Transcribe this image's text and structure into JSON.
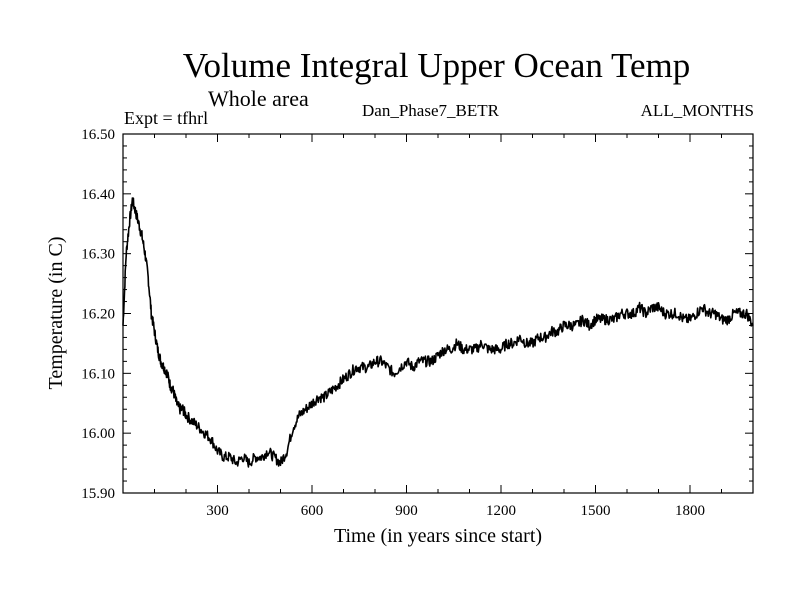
{
  "chart_data": {
    "type": "line",
    "title": "Volume Integral Upper Ocean Temp",
    "subtitle": "Whole area",
    "experiment_label": "Expt = tfhrl",
    "run_label": "Dan_Phase7_BETR",
    "months_label": "ALL_MONTHS",
    "xlabel": "Time (in years since start)",
    "ylabel": "Temperature (in C)",
    "xlim": [
      0,
      2000
    ],
    "ylim": [
      15.9,
      16.5
    ],
    "x_ticks": [
      300,
      600,
      900,
      1200,
      1500,
      1800
    ],
    "x_tick_labels": [
      "300",
      "600",
      "900",
      "1200",
      "1500",
      "1800"
    ],
    "y_ticks": [
      15.9,
      16.0,
      16.1,
      16.2,
      16.3,
      16.4,
      16.5
    ],
    "y_tick_labels": [
      "15.90",
      "16.00",
      "16.10",
      "16.20",
      "16.30",
      "16.40",
      "16.50"
    ],
    "grid": false,
    "series": [
      {
        "name": "Volume Integral Upper Ocean Temp",
        "color": "#000000",
        "x": [
          0,
          10,
          20,
          30,
          40,
          50,
          60,
          70,
          80,
          90,
          100,
          110,
          120,
          130,
          140,
          150,
          160,
          170,
          180,
          190,
          200,
          220,
          240,
          260,
          280,
          300,
          320,
          340,
          360,
          380,
          400,
          420,
          440,
          460,
          480,
          500,
          520,
          540,
          560,
          580,
          600,
          620,
          640,
          660,
          680,
          700,
          720,
          740,
          760,
          780,
          800,
          820,
          840,
          860,
          880,
          900,
          920,
          940,
          960,
          980,
          1000,
          1020,
          1040,
          1060,
          1080,
          1100,
          1120,
          1140,
          1160,
          1180,
          1200,
          1220,
          1240,
          1260,
          1280,
          1300,
          1320,
          1340,
          1360,
          1380,
          1400,
          1420,
          1440,
          1460,
          1480,
          1500,
          1520,
          1540,
          1560,
          1580,
          1600,
          1620,
          1640,
          1660,
          1680,
          1700,
          1720,
          1740,
          1760,
          1780,
          1800,
          1820,
          1840,
          1860,
          1880,
          1900,
          1920,
          1940,
          1960,
          1980,
          2000
        ],
        "values": [
          16.18,
          16.3,
          16.35,
          16.39,
          16.37,
          16.35,
          16.33,
          16.3,
          16.26,
          16.2,
          16.17,
          16.14,
          16.12,
          16.11,
          16.1,
          16.08,
          16.07,
          16.05,
          16.04,
          16.04,
          16.03,
          16.02,
          16.01,
          16.0,
          15.99,
          15.97,
          15.96,
          15.96,
          15.95,
          15.96,
          15.95,
          15.96,
          15.96,
          15.97,
          15.96,
          15.95,
          15.97,
          16.01,
          16.03,
          16.04,
          16.05,
          16.06,
          16.06,
          16.07,
          16.08,
          16.09,
          16.1,
          16.11,
          16.11,
          16.11,
          16.12,
          16.12,
          16.11,
          16.1,
          16.11,
          16.12,
          16.11,
          16.12,
          16.12,
          16.12,
          16.13,
          16.14,
          16.14,
          16.15,
          16.14,
          16.14,
          16.14,
          16.15,
          16.14,
          16.14,
          16.14,
          16.15,
          16.15,
          16.16,
          16.15,
          16.15,
          16.16,
          16.16,
          16.17,
          16.17,
          16.18,
          16.18,
          16.18,
          16.19,
          16.18,
          16.19,
          16.19,
          16.19,
          16.19,
          16.2,
          16.2,
          16.2,
          16.21,
          16.2,
          16.21,
          16.21,
          16.2,
          16.2,
          16.2,
          16.19,
          16.19,
          16.2,
          16.21,
          16.2,
          16.2,
          16.19,
          16.19,
          16.2,
          16.2,
          16.2,
          16.18
        ]
      }
    ]
  }
}
